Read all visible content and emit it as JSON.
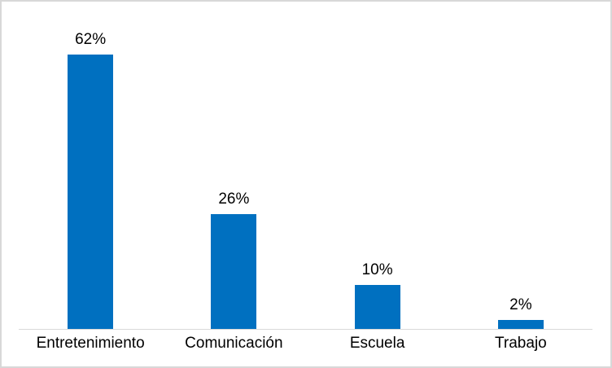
{
  "chart_data": {
    "type": "bar",
    "categories": [
      "Entretenimiento",
      "Comunicación",
      "Escuela",
      "Trabajo"
    ],
    "values": [
      62,
      26,
      10,
      2
    ],
    "value_labels": [
      "62%",
      "26%",
      "10%",
      "2%"
    ],
    "title": "",
    "xlabel": "",
    "ylabel": "",
    "ylim": [
      0,
      74
    ],
    "grid": false,
    "legend": false,
    "data_labels_position": "above-bar",
    "orientation": "vertical"
  },
  "style": {
    "bar_color": "#0070C0",
    "axis_line_color": "#D9D9D9",
    "frame_border_color": "#D8D8D8",
    "label_color": "#000000",
    "background_color": "#FFFFFF"
  }
}
